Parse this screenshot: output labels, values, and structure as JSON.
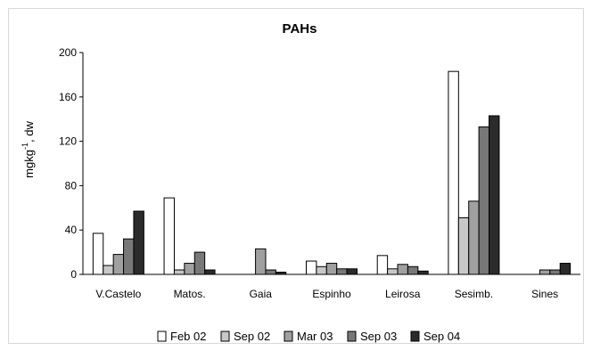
{
  "chart_data": {
    "type": "bar",
    "title": "PAHs",
    "xlabel": "",
    "ylabel_main": "mgkg",
    "ylabel_sup": "-1",
    "ylabel_rest": ", dw",
    "ylim": [
      0,
      200
    ],
    "yticks": [
      0,
      40,
      80,
      120,
      160,
      200
    ],
    "grid": false,
    "legend_position": "bottom",
    "categories": [
      "V.Castelo",
      "Matos.",
      "Gaia",
      "Espinho",
      "Leirosa",
      "Sesimb.",
      "Sines"
    ],
    "series": [
      {
        "name": "Feb 02",
        "color": "#ffffff",
        "values": [
          37,
          69,
          0,
          12,
          17,
          183,
          0
        ]
      },
      {
        "name": "Sep 02",
        "color": "#c8c8c8",
        "values": [
          8,
          4,
          0,
          7,
          5,
          51,
          0
        ]
      },
      {
        "name": "Mar 03",
        "color": "#a0a0a0",
        "values": [
          18,
          10,
          23,
          10,
          9,
          66,
          4
        ]
      },
      {
        "name": "Sep 03",
        "color": "#787878",
        "values": [
          32,
          20,
          4,
          5,
          7,
          133,
          4
        ]
      },
      {
        "name": "Sep 04",
        "color": "#2b2b2b",
        "values": [
          57,
          4,
          2,
          5,
          3,
          143,
          10
        ]
      }
    ]
  }
}
